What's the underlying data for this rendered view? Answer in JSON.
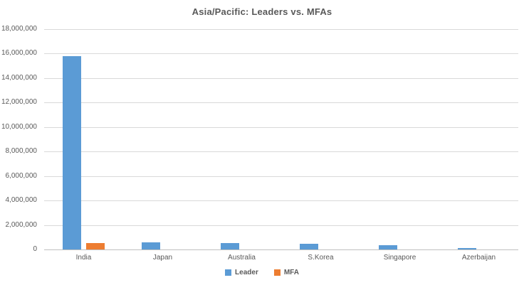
{
  "chart_data": {
    "type": "bar",
    "title": "Asia/Pacific: Leaders vs. MFAs",
    "categories": [
      "India",
      "Japan",
      "Australia",
      "S.Korea",
      "Singapore",
      "Azerbaijan"
    ],
    "series": [
      {
        "name": "Leader",
        "color": "#5B9BD5",
        "values": [
          15800000,
          600000,
          540000,
          480000,
          370000,
          140000
        ]
      },
      {
        "name": "MFA",
        "color": "#ED7D31",
        "values": [
          500000,
          0,
          0,
          0,
          0,
          0
        ]
      }
    ],
    "ylim": [
      0,
      18000000
    ],
    "ytick_step": 2000000,
    "ytick_labels": [
      "0",
      "2,000,000",
      "4,000,000",
      "6,000,000",
      "8,000,000",
      "10,000,000",
      "12,000,000",
      "14,000,000",
      "16,000,000",
      "18,000,000"
    ],
    "xlabel": "",
    "ylabel": "",
    "grid": "horizontal",
    "legend_position": "bottom",
    "colors": {
      "grid": "#D9D9D9",
      "baseline": "#BFBFBF",
      "axis_text": "#595959",
      "title_text": "#595959",
      "background": "#FFFFFF"
    }
  }
}
